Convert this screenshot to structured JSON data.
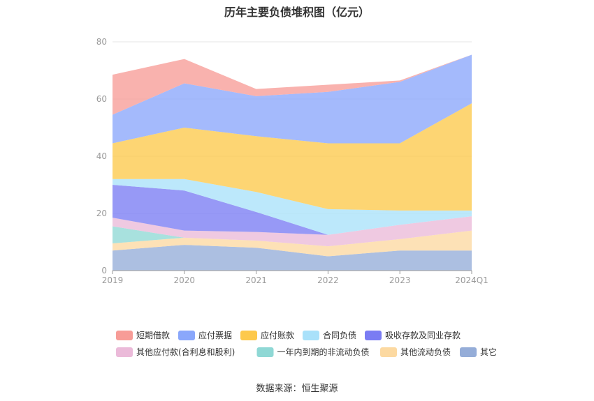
{
  "title": "历年主要负债堆积图（亿元）",
  "source": "数据来源：恒生聚源",
  "colors": {
    "短期借款": "#f79c97",
    "应付票据": "#8aa7fb",
    "应付账款": "#fdc94c",
    "合同负债": "#a9e1fa",
    "吸收存款及同业存款": "#7a7cf3",
    "其他应付款(合利息和股利)": "#ebbad9",
    "一年内到期的非流动负债": "#8fd8d5",
    "其他流动负债": "#fcd9a1",
    "其它": "#95add8"
  },
  "chart_data": {
    "type": "area",
    "stacked": true,
    "categories": [
      "2019",
      "2020",
      "2021",
      "2022",
      "2023",
      "2024Q1"
    ],
    "ylim": [
      0,
      80
    ],
    "yticks": [
      0,
      20,
      40,
      60,
      80
    ],
    "grid": true,
    "legend": "bottom",
    "series": [
      {
        "name": "其它",
        "values": [
          7,
          9,
          8,
          5,
          7,
          7
        ]
      },
      {
        "name": "其他流动负债",
        "values": [
          2.5,
          2.5,
          2.5,
          3.5,
          4,
          7
        ]
      },
      {
        "name": "一年内到期的非流动负债",
        "values": [
          6,
          0,
          0,
          0,
          0,
          0
        ]
      },
      {
        "name": "其他应付款(合利息和股利)",
        "values": [
          3,
          2.5,
          3,
          4,
          5,
          5
        ]
      },
      {
        "name": "吸收存款及同业存款",
        "values": [
          11.5,
          14,
          7,
          0,
          0,
          0
        ]
      },
      {
        "name": "合同负债",
        "values": [
          2,
          4,
          7,
          9,
          5,
          2
        ]
      },
      {
        "name": "应付账款",
        "values": [
          12.5,
          18,
          19.5,
          23,
          23.5,
          37.5
        ]
      },
      {
        "name": "应付票据",
        "values": [
          10,
          15.5,
          14,
          18,
          21.5,
          17
        ]
      },
      {
        "name": "短期借款",
        "values": [
          14,
          8.5,
          2.5,
          2.5,
          0.5,
          0
        ]
      }
    ]
  }
}
